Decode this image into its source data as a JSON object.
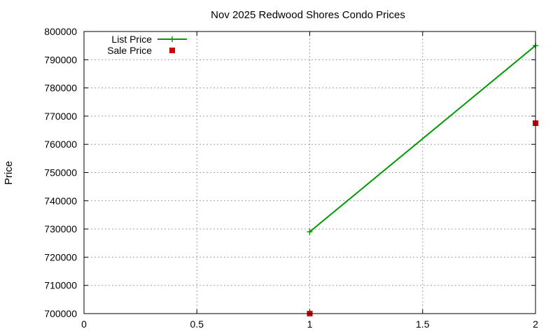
{
  "chart_data": {
    "type": "line",
    "title": "Nov 2025 Redwood Shores Condo Prices",
    "xlabel": "",
    "ylabel": "Price",
    "xlim": [
      0,
      2
    ],
    "ylim": [
      700000,
      800000
    ],
    "x_ticks": [
      "0",
      "0.5",
      "1",
      "1.5",
      "2"
    ],
    "y_ticks": [
      "700000",
      "710000",
      "720000",
      "730000",
      "740000",
      "750000",
      "760000",
      "770000",
      "780000",
      "790000",
      "800000"
    ],
    "grid": true,
    "legend_position": "top-left",
    "series": [
      {
        "name": "List Price",
        "style": "lines+points",
        "marker": "plus",
        "color": "#009900",
        "points": [
          [
            1,
            729000
          ],
          [
            2,
            795000
          ]
        ]
      },
      {
        "name": "Sale Price",
        "style": "points",
        "marker": "square",
        "color": "#cc0000",
        "points": [
          [
            1,
            700000
          ],
          [
            2,
            767500
          ]
        ]
      }
    ]
  }
}
